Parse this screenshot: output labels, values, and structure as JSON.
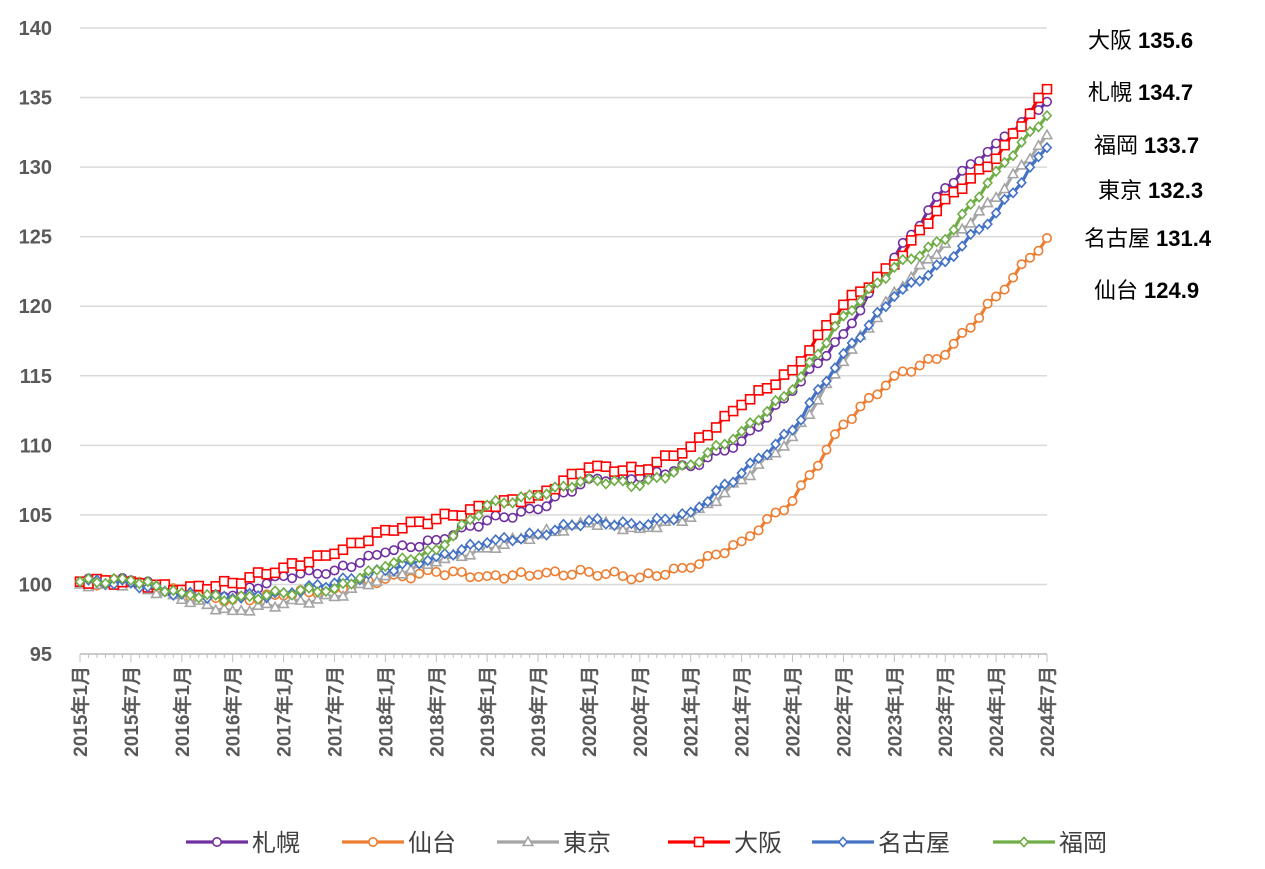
{
  "chart_data": {
    "type": "line",
    "ylim": [
      95,
      140
    ],
    "yticks": [
      95,
      100,
      105,
      110,
      115,
      120,
      125,
      130,
      135,
      140
    ],
    "grid": "horizontal",
    "legend_position": "bottom",
    "x_tick_labels": [
      "2015年1月",
      "2015年7月",
      "2016年1月",
      "2016年7月",
      "2017年1月",
      "2017年7月",
      "2018年1月",
      "2018年7月",
      "2019年1月",
      "2019年7月",
      "2020年1月",
      "2020年7月",
      "2021年1月",
      "2021年7月",
      "2022年1月",
      "2022年7月",
      "2023年1月",
      "2023年7月",
      "2024年1月",
      "2024年7月"
    ],
    "monthly_points": 115,
    "series": [
      {
        "name": "札幌",
        "color": "#7030A0",
        "marker": "circle",
        "anchors": [
          [
            0,
            100.2
          ],
          [
            6,
            100.3
          ],
          [
            12,
            99.5
          ],
          [
            18,
            99.2
          ],
          [
            24,
            100.6
          ],
          [
            30,
            101.0
          ],
          [
            36,
            102.3
          ],
          [
            42,
            103.2
          ],
          [
            48,
            104.6
          ],
          [
            54,
            105.4
          ],
          [
            60,
            107.6
          ],
          [
            66,
            107.7
          ],
          [
            72,
            108.5
          ],
          [
            78,
            110.3
          ],
          [
            84,
            113.9
          ],
          [
            90,
            118.0
          ],
          [
            96,
            123.5
          ],
          [
            102,
            128.5
          ],
          [
            108,
            131.7
          ],
          [
            114,
            134.7
          ]
        ]
      },
      {
        "name": "仙台",
        "color": "#ED7D31",
        "marker": "circle",
        "anchors": [
          [
            0,
            100.1
          ],
          [
            6,
            100.2
          ],
          [
            12,
            99.4
          ],
          [
            18,
            98.9
          ],
          [
            24,
            99.2
          ],
          [
            30,
            99.7
          ],
          [
            36,
            100.4
          ],
          [
            42,
            100.9
          ],
          [
            48,
            100.6
          ],
          [
            54,
            100.7
          ],
          [
            60,
            100.9
          ],
          [
            66,
            100.5
          ],
          [
            72,
            101.2
          ],
          [
            78,
            103.1
          ],
          [
            84,
            106.0
          ],
          [
            90,
            111.5
          ],
          [
            96,
            115.0
          ],
          [
            102,
            116.5
          ],
          [
            108,
            120.7
          ],
          [
            114,
            124.9
          ]
        ]
      },
      {
        "name": "東京",
        "color": "#A5A5A5",
        "marker": "triangle",
        "anchors": [
          [
            0,
            100.0
          ],
          [
            6,
            100.1
          ],
          [
            12,
            98.9
          ],
          [
            18,
            98.1
          ],
          [
            24,
            98.6
          ],
          [
            30,
            99.1
          ],
          [
            36,
            100.6
          ],
          [
            42,
            101.6
          ],
          [
            48,
            102.6
          ],
          [
            54,
            103.6
          ],
          [
            60,
            104.4
          ],
          [
            66,
            104.0
          ],
          [
            72,
            104.8
          ],
          [
            78,
            107.5
          ],
          [
            84,
            110.6
          ],
          [
            90,
            116.0
          ],
          [
            96,
            121.0
          ],
          [
            102,
            124.5
          ],
          [
            108,
            127.8
          ],
          [
            114,
            132.3
          ]
        ]
      },
      {
        "name": "大阪",
        "color": "#FF0000",
        "marker": "square",
        "anchors": [
          [
            0,
            100.2
          ],
          [
            6,
            100.2
          ],
          [
            12,
            99.6
          ],
          [
            18,
            100.1
          ],
          [
            24,
            101.2
          ],
          [
            30,
            102.2
          ],
          [
            36,
            103.9
          ],
          [
            42,
            104.7
          ],
          [
            48,
            105.6
          ],
          [
            54,
            106.4
          ],
          [
            60,
            108.4
          ],
          [
            66,
            108.2
          ],
          [
            72,
            109.9
          ],
          [
            78,
            112.9
          ],
          [
            84,
            115.4
          ],
          [
            90,
            120.1
          ],
          [
            96,
            123.0
          ],
          [
            102,
            127.7
          ],
          [
            108,
            130.6
          ],
          [
            114,
            135.6
          ]
        ]
      },
      {
        "name": "名古屋",
        "color": "#4472C4",
        "marker": "diamond",
        "anchors": [
          [
            0,
            100.2
          ],
          [
            6,
            100.1
          ],
          [
            12,
            99.3
          ],
          [
            18,
            99.0
          ],
          [
            24,
            99.4
          ],
          [
            30,
            100.1
          ],
          [
            36,
            101.0
          ],
          [
            42,
            102.0
          ],
          [
            48,
            103.0
          ],
          [
            54,
            103.6
          ],
          [
            60,
            104.6
          ],
          [
            66,
            104.2
          ],
          [
            72,
            105.2
          ],
          [
            78,
            108.0
          ],
          [
            84,
            111.1
          ],
          [
            90,
            116.6
          ],
          [
            96,
            120.7
          ],
          [
            102,
            123.2
          ],
          [
            108,
            126.7
          ],
          [
            114,
            131.4
          ]
        ]
      },
      {
        "name": "福岡",
        "color": "#70AD47",
        "marker": "diamond",
        "anchors": [
          [
            0,
            100.2
          ],
          [
            6,
            100.3
          ],
          [
            12,
            99.4
          ],
          [
            18,
            98.9
          ],
          [
            24,
            99.4
          ],
          [
            30,
            99.7
          ],
          [
            36,
            101.3
          ],
          [
            42,
            102.5
          ],
          [
            48,
            105.7
          ],
          [
            54,
            106.4
          ],
          [
            60,
            107.6
          ],
          [
            66,
            107.1
          ],
          [
            72,
            108.6
          ],
          [
            78,
            111.0
          ],
          [
            84,
            114.0
          ],
          [
            90,
            119.3
          ],
          [
            96,
            122.8
          ],
          [
            102,
            124.8
          ],
          [
            108,
            129.7
          ],
          [
            114,
            133.7
          ]
        ]
      }
    ],
    "end_labels": [
      {
        "name": "大阪",
        "value": "135.6"
      },
      {
        "name": "札幌",
        "value": "134.7"
      },
      {
        "name": "福岡",
        "value": "133.7"
      },
      {
        "name": "東京",
        "value": "132.3"
      },
      {
        "name": "名古屋",
        "value": "131.4"
      },
      {
        "name": "仙台",
        "value": "124.9"
      }
    ]
  }
}
